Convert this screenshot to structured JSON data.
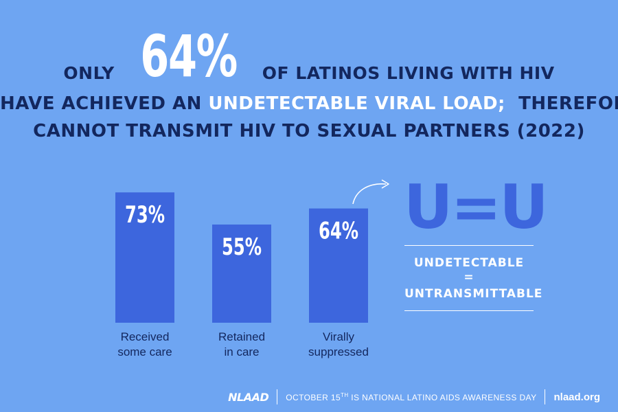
{
  "headline": {
    "line1_pre": "ONLY",
    "line1_big": "64%",
    "line1_post": "OF LATINOS LIVING WITH HIV",
    "line2_pre": "HAVE ACHIEVED AN",
    "line2_hl": "UNDETECTABLE VIRAL LOAD;",
    "line2_post": "THEREFORE",
    "line3": "CANNOT TRANSMIT HIV TO SEXUAL PARTNERS (2022)"
  },
  "chart_data": {
    "type": "bar",
    "categories": [
      [
        "Received",
        "some care"
      ],
      [
        "Retained",
        "in care"
      ],
      [
        "Virally",
        "suppressed"
      ]
    ],
    "values": [
      73,
      55,
      64
    ],
    "value_labels": [
      "73%",
      "55%",
      "64%"
    ],
    "ylim": [
      0,
      100
    ],
    "grid": false,
    "title": "",
    "xlabel": "",
    "ylabel": ""
  },
  "colors": {
    "background": "#6ea5f2",
    "bar": "#3d66dd",
    "headline_text": "#13275e",
    "highlight_text": "#ffffff"
  },
  "uu": {
    "logo": "U=U",
    "line1": "UNDETECTABLE",
    "eq": "=",
    "line2": "UNTRANSMITTABLE"
  },
  "footer": {
    "logo": "NLAAD",
    "tagline_pre": "OCTOBER 15",
    "tagline_sup": "TH",
    "tagline_post": " IS NATIONAL LATINO AIDS AWARENESS DAY",
    "site": "nlaad.org"
  }
}
